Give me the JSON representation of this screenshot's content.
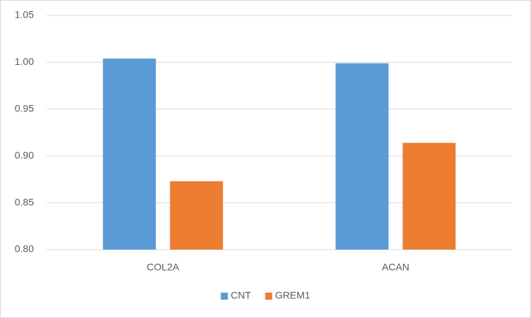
{
  "chart_data": {
    "type": "bar",
    "categories": [
      "COL2A",
      "ACAN"
    ],
    "series": [
      {
        "name": "CNT",
        "color": "#5b9bd5",
        "values": [
          1.004,
          0.999
        ]
      },
      {
        "name": "GREM1",
        "color": "#ed7d31",
        "values": [
          0.873,
          0.914
        ]
      }
    ],
    "ylim": [
      0.8,
      1.05
    ],
    "yticks": [
      {
        "value": 0.8,
        "label": "0.80"
      },
      0.85,
      {
        "value": 0.9,
        "label": "0.90"
      },
      0.95,
      {
        "value": 1.0,
        "label": "1.00"
      },
      1.05
    ],
    "grid": true,
    "legend": "bottom"
  }
}
